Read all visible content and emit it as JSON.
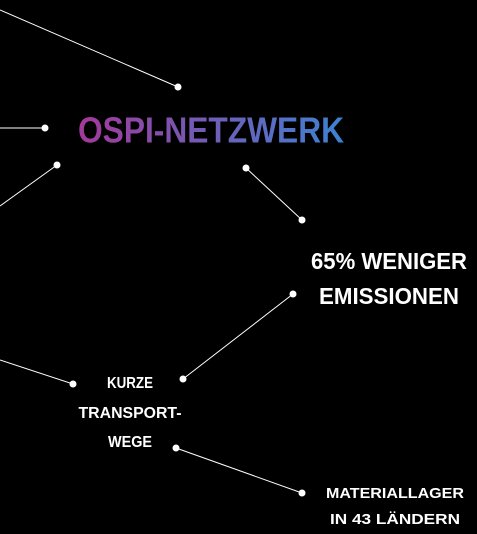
{
  "title": "OSPI-NETZWERK",
  "nodes": [
    {
      "lines": [
        "65% WENIGER",
        "EMISSIONEN"
      ]
    },
    {
      "lines": [
        "KURZE",
        "TRANSPORT-",
        "WEGE"
      ]
    },
    {
      "lines": [
        "MATERIALLAGER",
        "IN 43 LÄNDERN"
      ]
    }
  ]
}
